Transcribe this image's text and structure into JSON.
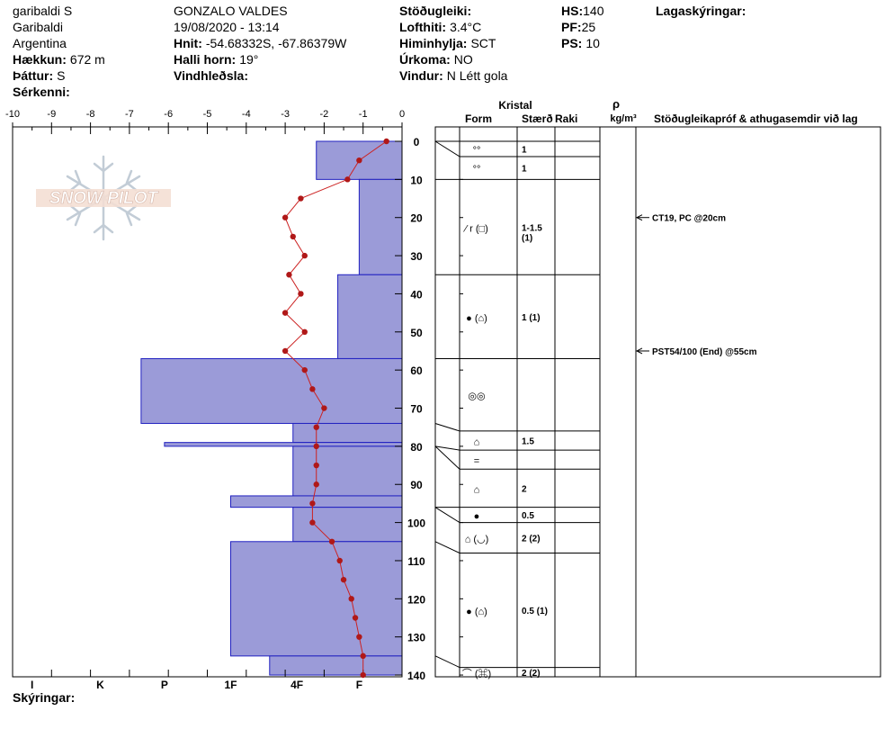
{
  "header": {
    "location_name": "garibaldi S",
    "region": "Garibaldi",
    "country": "Argentina",
    "elevation_label": "Hækkun:",
    "elevation_value": "672 m",
    "aspect_label": "Þáttur:",
    "aspect_value": "S",
    "features_label": "Sérkenni:",
    "observer": "GONZALO VALDES",
    "datetime": "19/08/2020 - 13:14",
    "coords_label": "Hnit:",
    "coords_value": "-54.68332S, -67.86379W",
    "slope_label": "Halli horn:",
    "slope_value": "19°",
    "wind_loading_label": "Vindhleðsla:",
    "stability_label": "Stöðugleiki:",
    "air_temp_label": "Lofthiti:",
    "air_temp_value": "3.4°C",
    "sky_label": "Himinhylja:",
    "sky_value": "SCT",
    "precip_label": "Úrkoma:",
    "precip_value": "NO",
    "wind_label": "Vindur:",
    "wind_value": "N Létt gola",
    "hs_label": "HS:",
    "hs_value": "140",
    "pf_label": "PF:",
    "pf_value": "25",
    "ps_label": "PS:",
    "ps_value": "10",
    "layer_notes_label": "Lagaskýringar:"
  },
  "footer": {
    "notes_label": "Skýringar:"
  },
  "logo_text": "SNOW PILOT",
  "colors": {
    "hardness_fill": "#9b9bd8",
    "hardness_stroke": "#2020c0",
    "temp_line": "#cc2222",
    "temp_dot": "#b01818"
  },
  "table": {
    "kristal": "Kristal",
    "form": "Form",
    "size": "Stærð",
    "moisture": "Raki",
    "rho": "ρ",
    "density_unit": "kg/m³",
    "stability_header": "Stöðugleikapróf & athugasemdir við lag"
  },
  "chart_data": {
    "type": "snow-profile",
    "x_ticks": [
      "-10",
      "-9",
      "-8",
      "-7",
      "-6",
      "-5",
      "-4",
      "-3",
      "-2",
      "-1",
      "0"
    ],
    "xlim": [
      -10,
      0
    ],
    "hardness_labels": [
      "I",
      "K",
      "P",
      "1F",
      "4F",
      "F"
    ],
    "depth_ticks": [
      "0",
      "10",
      "20",
      "30",
      "40",
      "50",
      "60",
      "70",
      "80",
      "90",
      "100",
      "110",
      "120",
      "130",
      "140"
    ],
    "depth_range": [
      0,
      140
    ],
    "hardness_layers": [
      {
        "top": 0,
        "bottom": 10,
        "x": -2.2
      },
      {
        "top": 10,
        "bottom": 35,
        "x": -1.1
      },
      {
        "top": 35,
        "bottom": 57,
        "x": -1.65
      },
      {
        "top": 57,
        "bottom": 74,
        "x": -6.7
      },
      {
        "top": 74,
        "bottom": 79,
        "x": -2.8
      },
      {
        "top": 79,
        "bottom": 80,
        "x": -6.1
      },
      {
        "top": 80,
        "bottom": 93,
        "x": -2.8
      },
      {
        "top": 93,
        "bottom": 96,
        "x": -4.4
      },
      {
        "top": 96,
        "bottom": 105,
        "x": -2.8
      },
      {
        "top": 105,
        "bottom": 135,
        "x": -4.4
      },
      {
        "top": 135,
        "bottom": 140,
        "x": -3.4
      }
    ],
    "temperature_profile": [
      {
        "depth": 0,
        "temp": -0.4
      },
      {
        "depth": 5,
        "temp": -1.1
      },
      {
        "depth": 10,
        "temp": -1.4
      },
      {
        "depth": 15,
        "temp": -2.6
      },
      {
        "depth": 20,
        "temp": -3.0
      },
      {
        "depth": 25,
        "temp": -2.8
      },
      {
        "depth": 30,
        "temp": -2.5
      },
      {
        "depth": 35,
        "temp": -2.9
      },
      {
        "depth": 40,
        "temp": -2.6
      },
      {
        "depth": 45,
        "temp": -3.0
      },
      {
        "depth": 50,
        "temp": -2.5
      },
      {
        "depth": 55,
        "temp": -3.0
      },
      {
        "depth": 60,
        "temp": -2.5
      },
      {
        "depth": 65,
        "temp": -2.3
      },
      {
        "depth": 70,
        "temp": -2.0
      },
      {
        "depth": 75,
        "temp": -2.2
      },
      {
        "depth": 80,
        "temp": -2.2
      },
      {
        "depth": 85,
        "temp": -2.2
      },
      {
        "depth": 90,
        "temp": -2.2
      },
      {
        "depth": 95,
        "temp": -2.3
      },
      {
        "depth": 100,
        "temp": -2.3
      },
      {
        "depth": 105,
        "temp": -1.8
      },
      {
        "depth": 110,
        "temp": -1.6
      },
      {
        "depth": 115,
        "temp": -1.5
      },
      {
        "depth": 120,
        "temp": -1.3
      },
      {
        "depth": 125,
        "temp": -1.2
      },
      {
        "depth": 130,
        "temp": -1.1
      },
      {
        "depth": 135,
        "temp": -1.0
      },
      {
        "depth": 140,
        "temp": -1.0
      }
    ],
    "layers": [
      {
        "top": 0,
        "bottom": 4,
        "form": "°°",
        "size": "1"
      },
      {
        "top": 4,
        "bottom": 10,
        "form": "°°",
        "size": "1"
      },
      {
        "top": 10,
        "bottom": 35,
        "form": "⁄ r (□)",
        "size": "1-1.5",
        "size2": "(1)"
      },
      {
        "top": 35,
        "bottom": 57,
        "form": "● (⌂)",
        "size": "1 (1)"
      },
      {
        "top": 57,
        "bottom": 76,
        "form": "◎◎",
        "size": ""
      },
      {
        "top": 76,
        "bottom": 81,
        "form": "⌂",
        "size": "1.5"
      },
      {
        "top": 81,
        "bottom": 86,
        "form": "=",
        "size": ""
      },
      {
        "top": 86,
        "bottom": 96,
        "form": "⌂",
        "size": "2"
      },
      {
        "top": 96,
        "bottom": 100,
        "form": "●",
        "size": "0.5"
      },
      {
        "top": 100,
        "bottom": 108,
        "form": "⌂ (◡)",
        "size": "2 (2)"
      },
      {
        "top": 108,
        "bottom": 138,
        "form": "● (⌂)",
        "size": "0.5 (1)"
      },
      {
        "top": 138,
        "bottom": 143,
        "form": "⌒ (⌘)",
        "size": "2 (2)"
      }
    ],
    "stability_tests": [
      {
        "depth": 20,
        "text": "CT19, PC @20cm"
      },
      {
        "depth": 55,
        "text": "PST54/100 (End) @55cm"
      }
    ]
  }
}
